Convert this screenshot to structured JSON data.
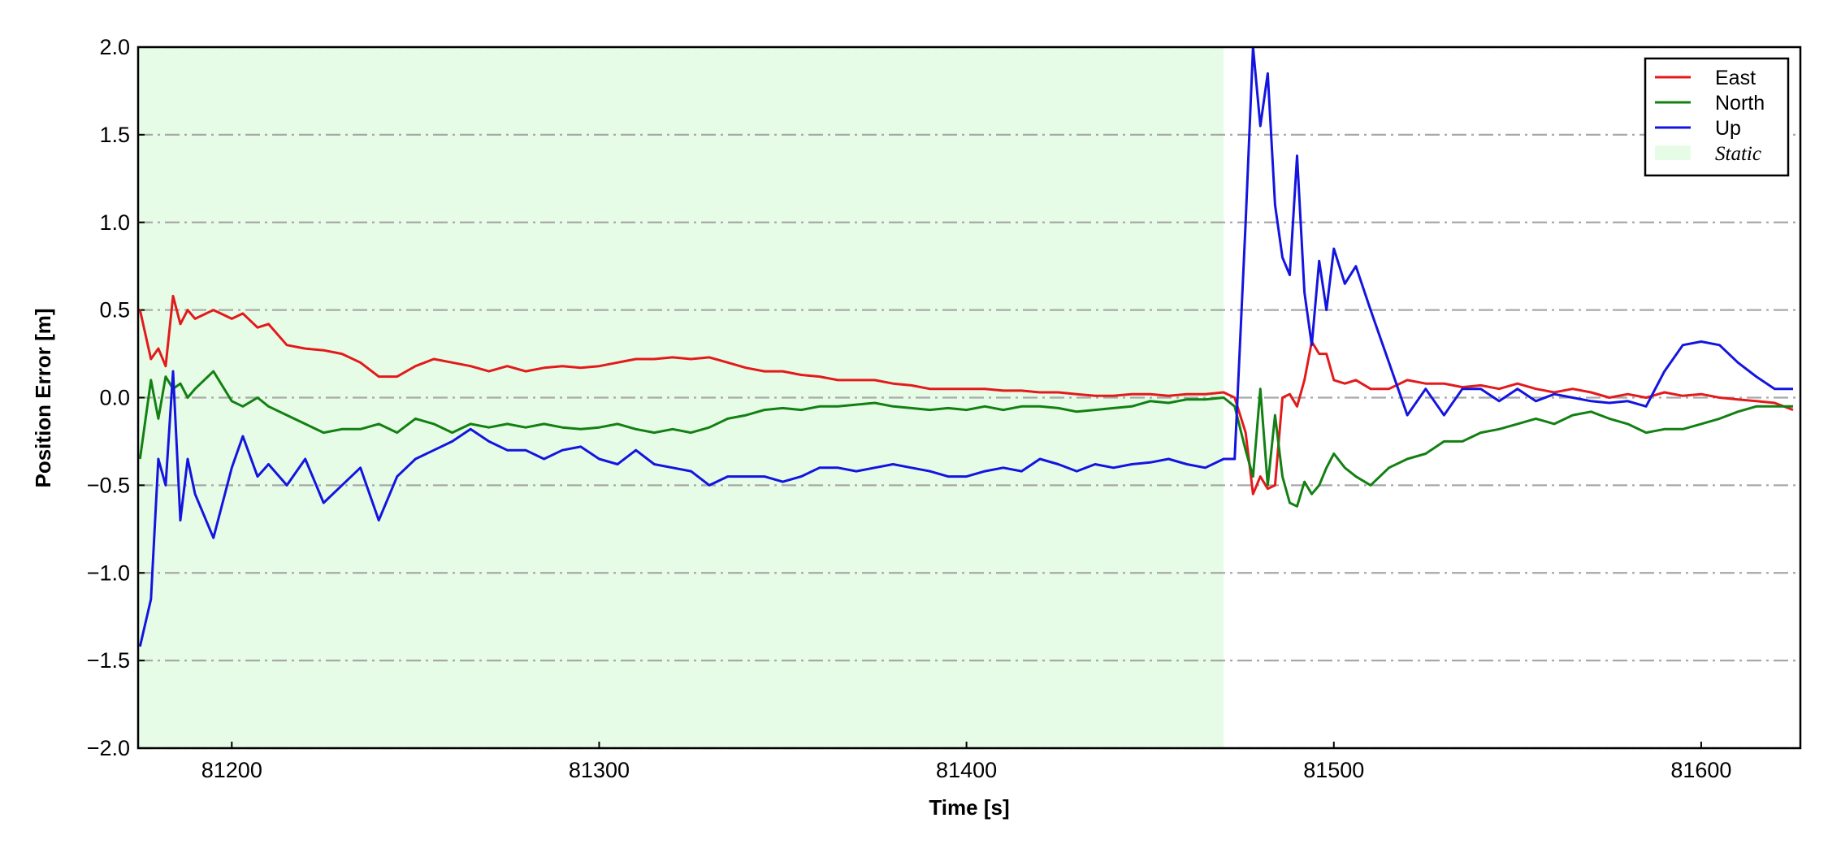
{
  "chart_data": {
    "type": "line",
    "xlabel": "Time [s]",
    "ylabel": "Position Error [m]",
    "x": [
      81175,
      81178,
      81180,
      81182,
      81184,
      81186,
      81188,
      81190,
      81195,
      81200,
      81203,
      81207,
      81210,
      81215,
      81220,
      81225,
      81230,
      81235,
      81240,
      81245,
      81250,
      81255,
      81260,
      81265,
      81270,
      81275,
      81280,
      81285,
      81290,
      81295,
      81300,
      81305,
      81310,
      81315,
      81320,
      81325,
      81330,
      81335,
      81340,
      81345,
      81350,
      81355,
      81360,
      81365,
      81370,
      81375,
      81380,
      81385,
      81390,
      81395,
      81400,
      81405,
      81410,
      81415,
      81420,
      81425,
      81430,
      81435,
      81440,
      81445,
      81450,
      81455,
      81460,
      81465,
      81470,
      81473,
      81476,
      81478,
      81480,
      81482,
      81484,
      81486,
      81488,
      81490,
      81492,
      81494,
      81496,
      81498,
      81500,
      81503,
      81506,
      81510,
      81515,
      81520,
      81525,
      81530,
      81535,
      81540,
      81545,
      81550,
      81555,
      81560,
      81565,
      81570,
      81575,
      81580,
      81585,
      81590,
      81595,
      81600,
      81605,
      81610,
      81615,
      81620,
      81625
    ],
    "series": [
      {
        "name": "East",
        "color": "#e31a1c",
        "values": [
          0.5,
          0.22,
          0.28,
          0.18,
          0.58,
          0.42,
          0.5,
          0.45,
          0.5,
          0.45,
          0.48,
          0.4,
          0.42,
          0.3,
          0.28,
          0.27,
          0.25,
          0.2,
          0.12,
          0.12,
          0.18,
          0.22,
          0.2,
          0.18,
          0.15,
          0.18,
          0.15,
          0.17,
          0.18,
          0.17,
          0.18,
          0.2,
          0.22,
          0.22,
          0.23,
          0.22,
          0.23,
          0.2,
          0.17,
          0.15,
          0.15,
          0.13,
          0.12,
          0.1,
          0.1,
          0.1,
          0.08,
          0.07,
          0.05,
          0.05,
          0.05,
          0.05,
          0.04,
          0.04,
          0.03,
          0.03,
          0.02,
          0.01,
          0.01,
          0.02,
          0.02,
          0.01,
          0.02,
          0.02,
          0.03,
          0.0,
          -0.2,
          -0.55,
          -0.45,
          -0.52,
          -0.5,
          0.0,
          0.02,
          -0.05,
          0.1,
          0.32,
          0.25,
          0.25,
          0.1,
          0.08,
          0.1,
          0.05,
          0.05,
          0.1,
          0.08,
          0.08,
          0.06,
          0.07,
          0.05,
          0.08,
          0.05,
          0.03,
          0.05,
          0.03,
          0.0,
          0.02,
          0.0,
          0.03,
          0.01,
          0.02,
          0.0,
          -0.01,
          -0.02,
          -0.03,
          -0.07
        ]
      },
      {
        "name": "North",
        "color": "#138013",
        "values": [
          -0.35,
          0.1,
          -0.12,
          0.12,
          0.05,
          0.08,
          0.0,
          0.05,
          0.15,
          -0.02,
          -0.05,
          0.0,
          -0.05,
          -0.1,
          -0.15,
          -0.2,
          -0.18,
          -0.18,
          -0.15,
          -0.2,
          -0.12,
          -0.15,
          -0.2,
          -0.15,
          -0.17,
          -0.15,
          -0.17,
          -0.15,
          -0.17,
          -0.18,
          -0.17,
          -0.15,
          -0.18,
          -0.2,
          -0.18,
          -0.2,
          -0.17,
          -0.12,
          -0.1,
          -0.07,
          -0.06,
          -0.07,
          -0.05,
          -0.05,
          -0.04,
          -0.03,
          -0.05,
          -0.06,
          -0.07,
          -0.06,
          -0.07,
          -0.05,
          -0.07,
          -0.05,
          -0.05,
          -0.06,
          -0.08,
          -0.07,
          -0.06,
          -0.05,
          -0.02,
          -0.03,
          -0.01,
          -0.01,
          0.0,
          -0.05,
          -0.3,
          -0.45,
          0.05,
          -0.5,
          -0.1,
          -0.45,
          -0.6,
          -0.62,
          -0.48,
          -0.55,
          -0.5,
          -0.4,
          -0.32,
          -0.4,
          -0.45,
          -0.5,
          -0.4,
          -0.35,
          -0.32,
          -0.25,
          -0.25,
          -0.2,
          -0.18,
          -0.15,
          -0.12,
          -0.15,
          -0.1,
          -0.08,
          -0.12,
          -0.15,
          -0.2,
          -0.18,
          -0.18,
          -0.15,
          -0.12,
          -0.08,
          -0.05,
          -0.05,
          -0.05
        ]
      },
      {
        "name": "Up",
        "color": "#1414e0",
        "values": [
          -1.42,
          -1.15,
          -0.35,
          -0.5,
          0.15,
          -0.7,
          -0.35,
          -0.55,
          -0.8,
          -0.4,
          -0.22,
          -0.45,
          -0.38,
          -0.5,
          -0.35,
          -0.6,
          -0.5,
          -0.4,
          -0.7,
          -0.45,
          -0.35,
          -0.3,
          -0.25,
          -0.18,
          -0.25,
          -0.3,
          -0.3,
          -0.35,
          -0.3,
          -0.28,
          -0.35,
          -0.38,
          -0.3,
          -0.38,
          -0.4,
          -0.42,
          -0.5,
          -0.45,
          -0.45,
          -0.45,
          -0.48,
          -0.45,
          -0.4,
          -0.4,
          -0.42,
          -0.4,
          -0.38,
          -0.4,
          -0.42,
          -0.45,
          -0.45,
          -0.42,
          -0.4,
          -0.42,
          -0.35,
          -0.38,
          -0.42,
          -0.38,
          -0.4,
          -0.38,
          -0.37,
          -0.35,
          -0.38,
          -0.4,
          -0.35,
          -0.35,
          1.0,
          2.0,
          1.55,
          1.85,
          1.1,
          0.8,
          0.7,
          1.38,
          0.6,
          0.3,
          0.78,
          0.5,
          0.85,
          0.65,
          0.75,
          0.5,
          0.2,
          -0.1,
          0.05,
          -0.1,
          0.05,
          0.05,
          -0.02,
          0.05,
          -0.02,
          0.02,
          0.0,
          -0.02,
          -0.03,
          -0.02,
          -0.05,
          0.15,
          0.3,
          0.32,
          0.3,
          0.2,
          0.12,
          0.05,
          0.05
        ]
      }
    ],
    "shaded_region": {
      "name": "Static",
      "color": "#e6fce6",
      "x": [
        81174.5,
        81470
      ]
    },
    "xlim": [
      81174.5,
      81627
    ],
    "ylim": [
      -2.0,
      2.0
    ],
    "xticks": [
      81200,
      81300,
      81400,
      81500,
      81600
    ],
    "yticks": [
      {
        "value": -2.0,
        "label": "−2.0"
      },
      {
        "value": -1.5,
        "label": "−1.5"
      },
      {
        "value": -1.0,
        "label": "−1.0"
      },
      {
        "value": -0.5,
        "label": "−0.5"
      },
      {
        "value": 0.0,
        "label": "0.0"
      },
      {
        "value": 0.5,
        "label": "0.5"
      },
      {
        "value": 1.0,
        "label": "1.0"
      },
      {
        "value": 1.5,
        "label": "1.5"
      },
      {
        "value": 2.0,
        "label": "2.0"
      }
    ],
    "grid": true,
    "legend": "upper right"
  }
}
